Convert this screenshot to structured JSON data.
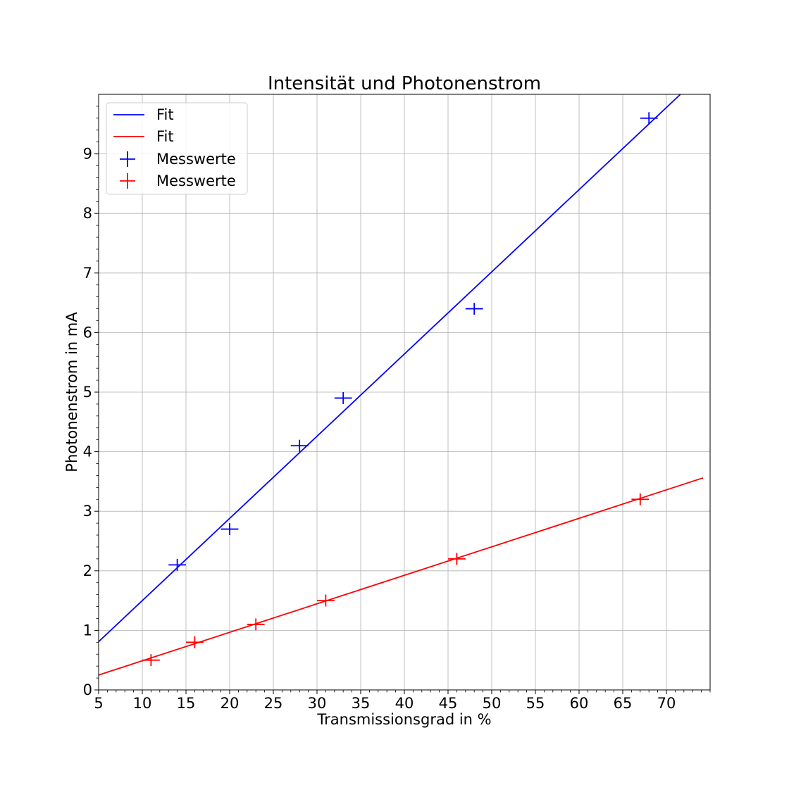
{
  "chart_data": {
    "type": "scatter",
    "title": "Intensität und Photonenstrom",
    "xlabel": "Transmissionsgrad in %",
    "ylabel": "Photonenstrom in mA",
    "xlim": [
      5,
      75
    ],
    "ylim": [
      0,
      10
    ],
    "xticks": [
      5,
      10,
      15,
      20,
      25,
      30,
      35,
      40,
      45,
      50,
      55,
      60,
      65,
      70
    ],
    "yticks": [
      0,
      1,
      2,
      3,
      4,
      5,
      6,
      7,
      8,
      9
    ],
    "grid": true,
    "legend_position": "top-left",
    "series": [
      {
        "name": "Fit",
        "kind": "line",
        "color": "#0000ff",
        "x": [
          5,
          71.6
        ],
        "y": [
          0.81,
          10.0
        ]
      },
      {
        "name": "Fit",
        "kind": "line",
        "color": "#ff0000",
        "x": [
          5,
          74.2
        ],
        "y": [
          0.25,
          3.56
        ]
      },
      {
        "name": "Messwerte",
        "kind": "errorbar",
        "color": "#0000ff",
        "x": [
          14,
          20,
          28,
          33,
          48,
          68
        ],
        "y": [
          2.1,
          2.7,
          4.1,
          4.9,
          6.4,
          9.6
        ],
        "xerr": 1,
        "yerr": 0.1
      },
      {
        "name": "Messwerte",
        "kind": "errorbar",
        "color": "#ff0000",
        "x": [
          11,
          16,
          23,
          31,
          46,
          67
        ],
        "y": [
          0.5,
          0.8,
          1.1,
          1.5,
          2.2,
          3.2
        ],
        "xerr": 1,
        "yerr": 0.1
      }
    ]
  }
}
